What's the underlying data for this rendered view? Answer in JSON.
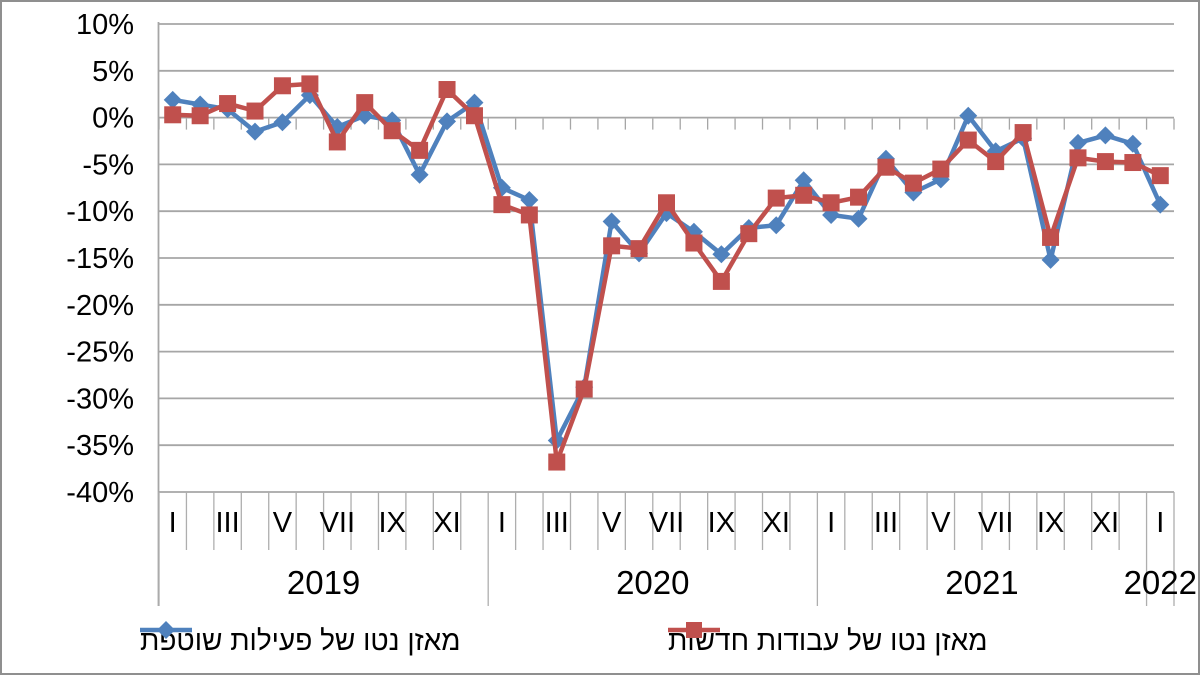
{
  "chart_data": {
    "type": "line",
    "title": "",
    "grid": "horizontal",
    "legend_position": "bottom",
    "y_axis": {
      "unit": "%",
      "max": 10,
      "min": -40,
      "step": 5,
      "tick_labels": [
        "10%",
        "5%",
        "0%",
        "-5%",
        "-10%",
        "-15%",
        "-20%",
        "-25%",
        "-30%",
        "-35%",
        "-40%"
      ]
    },
    "x_axis": {
      "month_tick_labels": [
        "I",
        "III",
        "V",
        "VII",
        "IX",
        "XI"
      ],
      "years": [
        {
          "label": "2019",
          "months": 12
        },
        {
          "label": "2020",
          "months": 12
        },
        {
          "label": "2021",
          "months": 12
        },
        {
          "label": "2022",
          "months": 1
        }
      ]
    },
    "series": [
      {
        "name": "מאזן נטו של פעילות שוטפת",
        "color": "#4F81BD",
        "marker": "diamond",
        "values": [
          1.9,
          1.4,
          0.9,
          -1.5,
          -0.5,
          2.4,
          -1.0,
          0.2,
          -0.3,
          -6.1,
          -0.4,
          1.6,
          -7.5,
          -8.8,
          -34.5,
          -28.8,
          -11.1,
          -14.5,
          -10.2,
          -12.2,
          -14.6,
          -11.8,
          -11.5,
          -6.7,
          -10.4,
          -10.8,
          -4.4,
          -8.0,
          -6.6,
          0.2,
          -3.6,
          -2.2,
          -15.2,
          -2.7,
          -1.9,
          -2.8,
          -9.3
        ]
      },
      {
        "name": "מאזן נטו של עבודות חדשות",
        "color": "#C0504D",
        "marker": "square",
        "values": [
          0.3,
          0.2,
          1.5,
          0.7,
          3.4,
          3.6,
          -2.6,
          1.6,
          -1.4,
          -3.5,
          3.0,
          0.2,
          -9.3,
          -10.4,
          -36.8,
          -29.0,
          -13.7,
          -14.0,
          -9.1,
          -13.4,
          -17.5,
          -12.4,
          -8.6,
          -8.3,
          -9.1,
          -8.5,
          -5.3,
          -7.0,
          -5.5,
          -2.4,
          -4.7,
          -1.6,
          -12.8,
          -4.3,
          -4.7,
          -4.8,
          -6.2
        ]
      }
    ]
  },
  "styles": {
    "grid_color": "#a6a6a6",
    "separator_color": "#aeaeae",
    "text_color": "#000000",
    "background": "#ffffff",
    "frame_color": "#8f8f8f",
    "series1_color": "#4F81BD",
    "series2_color": "#C0504D"
  }
}
